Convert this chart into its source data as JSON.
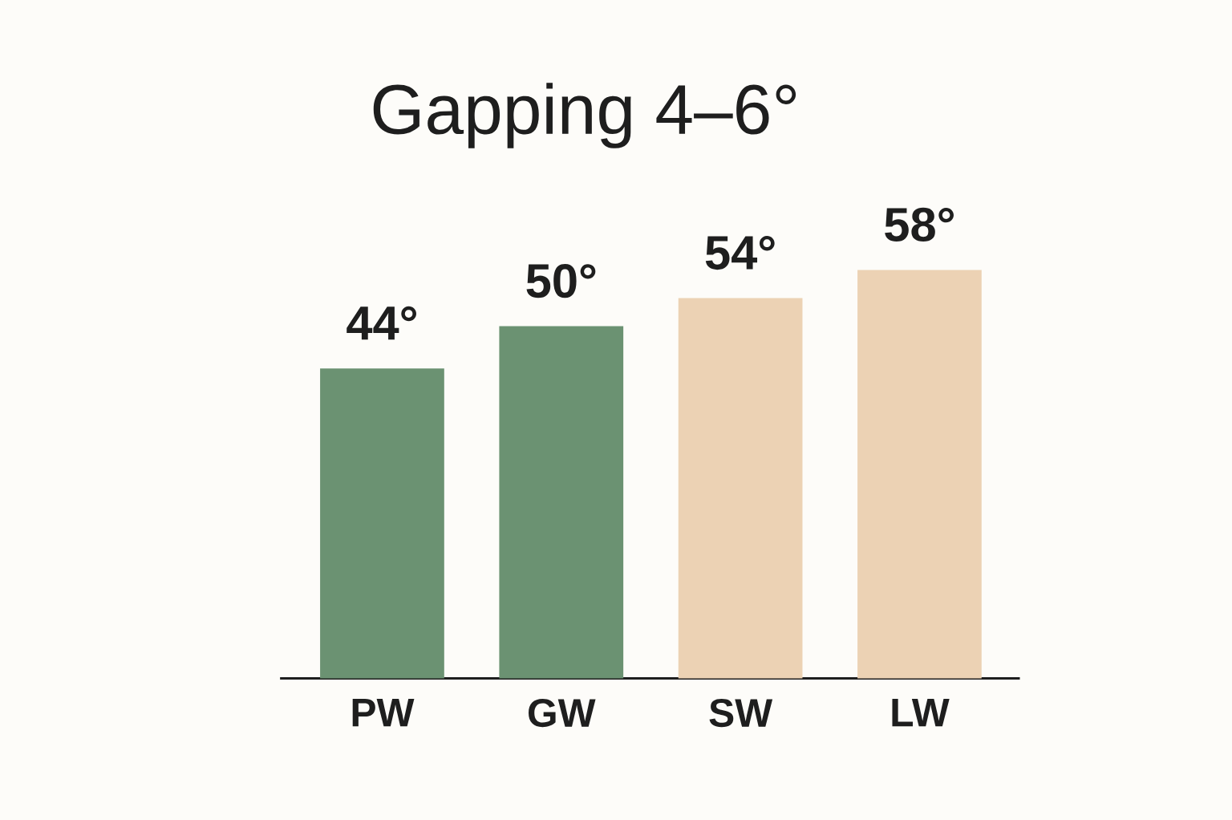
{
  "chart_data": {
    "type": "bar",
    "title": "Gapping 4–6°",
    "categories": [
      "PW",
      "GW",
      "SW",
      "LW"
    ],
    "values": [
      44,
      50,
      54,
      58
    ],
    "value_labels": [
      "44°",
      "50°",
      "54°",
      "58°"
    ],
    "colors": [
      "#6b9272",
      "#6b9272",
      "#ecd2b4",
      "#ecd2b4"
    ]
  }
}
